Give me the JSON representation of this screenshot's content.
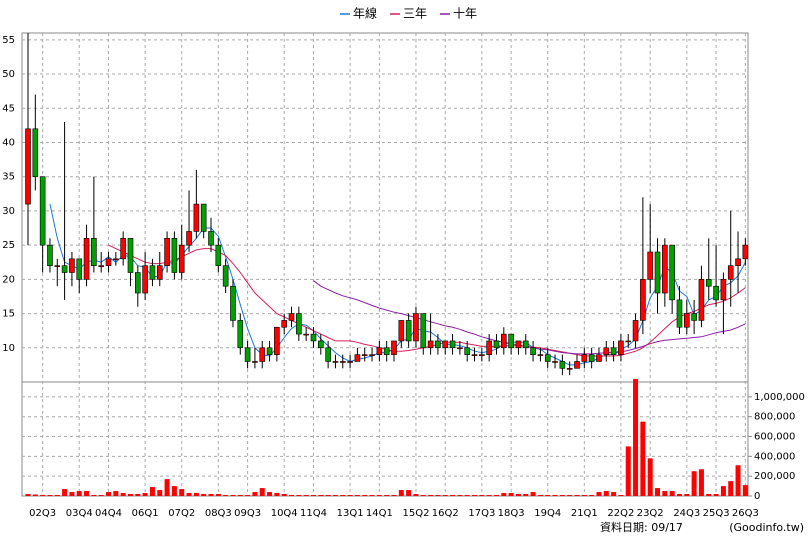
{
  "chart_data": {
    "type": "candlestick",
    "up_color": "#ff0000",
    "down_color": "#00a000",
    "volume_color": "#ff0000",
    "grid": true,
    "categories": [
      null,
      null,
      "02Q3",
      null,
      null,
      null,
      null,
      "03Q4",
      null,
      null,
      null,
      "04Q4",
      null,
      null,
      null,
      null,
      "06Q1",
      null,
      null,
      null,
      null,
      "07Q2",
      null,
      null,
      null,
      null,
      "08Q3",
      null,
      null,
      null,
      "09Q3",
      null,
      null,
      null,
      null,
      "10Q4",
      null,
      null,
      null,
      "11Q4",
      null,
      null,
      null,
      null,
      "13Q1",
      null,
      null,
      null,
      "14Q1",
      null,
      null,
      null,
      null,
      "15Q2",
      null,
      null,
      null,
      "16Q2",
      null,
      null,
      null,
      null,
      "17Q3",
      null,
      null,
      null,
      "18Q3",
      null,
      null,
      null,
      null,
      "19Q4",
      null,
      null,
      null,
      null,
      "21Q1",
      null,
      null,
      null,
      null,
      "22Q2",
      null,
      null,
      null,
      "23Q2",
      null,
      null,
      null,
      null,
      "24Q3",
      null,
      null,
      null,
      "25Q3",
      null,
      null,
      null,
      "26Q3"
    ],
    "open": [
      31,
      42,
      35,
      25,
      22,
      22,
      21,
      23,
      20,
      26,
      22,
      22,
      23,
      23,
      26,
      21,
      18,
      22,
      20,
      22,
      26,
      21,
      25,
      27,
      31,
      27,
      25,
      22,
      19,
      14,
      10,
      8,
      8,
      10,
      9,
      13,
      14,
      15,
      12,
      12,
      11,
      10,
      8,
      8,
      8,
      8,
      9,
      9,
      9,
      10,
      9,
      11,
      14,
      11,
      15,
      10,
      11,
      10,
      11,
      10,
      10,
      9,
      9,
      9,
      11,
      10,
      12,
      10,
      11,
      10,
      9,
      9,
      8,
      8,
      7,
      7,
      8,
      9,
      8,
      9,
      10,
      9,
      11,
      11,
      14,
      20,
      24,
      18,
      25,
      17,
      13,
      15,
      14,
      20,
      19,
      17,
      20,
      22,
      23
    ],
    "high": [
      56,
      47,
      35,
      26,
      23,
      43,
      24,
      23,
      28,
      35,
      24,
      24,
      24,
      27,
      26,
      22,
      24,
      23,
      24,
      27,
      27,
      28,
      33,
      36,
      31,
      29,
      26,
      23,
      20,
      15,
      11,
      10,
      11,
      11,
      13,
      15,
      16,
      16,
      13,
      13,
      12,
      11,
      9,
      9,
      9,
      10,
      10,
      10,
      11,
      11,
      11,
      14,
      15,
      16,
      15,
      15,
      12,
      11,
      12,
      11,
      11,
      10,
      10,
      12,
      12,
      13,
      12,
      11,
      12,
      11,
      10,
      10,
      9,
      9,
      8,
      9,
      10,
      10,
      10,
      11,
      11,
      12,
      12,
      15,
      32,
      31,
      26,
      26,
      25,
      19,
      17,
      17,
      22,
      26,
      25,
      21,
      30,
      27,
      26
    ],
    "low": [
      25,
      33,
      21,
      21,
      19,
      17,
      19,
      18,
      19,
      21,
      21,
      21,
      22,
      22,
      19,
      16,
      17,
      19,
      19,
      21,
      20,
      20,
      24,
      26,
      26,
      24,
      21,
      18,
      13,
      9,
      7,
      7,
      7,
      8,
      8,
      12,
      13,
      11,
      11,
      10,
      9,
      7,
      7,
      7,
      7,
      8,
      8,
      8,
      8,
      8,
      8,
      10,
      10,
      10,
      9,
      9,
      9,
      9,
      9,
      9,
      8,
      8,
      8,
      8,
      9,
      9,
      9,
      9,
      9,
      8,
      8,
      7,
      7,
      6,
      6,
      7,
      7,
      7,
      8,
      8,
      8,
      8,
      10,
      10,
      12,
      18,
      15,
      16,
      15,
      12,
      12,
      12,
      13,
      17,
      16,
      12,
      16,
      18,
      22
    ],
    "close": [
      42,
      35,
      25,
      22,
      22,
      21,
      23,
      20,
      26,
      22,
      22,
      23,
      23,
      26,
      21,
      18,
      22,
      20,
      22,
      26,
      21,
      25,
      27,
      31,
      27,
      25,
      22,
      19,
      14,
      10,
      8,
      8,
      10,
      9,
      13,
      14,
      15,
      12,
      12,
      11,
      10,
      8,
      8,
      8,
      8,
      9,
      9,
      9,
      10,
      9,
      11,
      14,
      11,
      15,
      10,
      11,
      10,
      11,
      10,
      10,
      9,
      9,
      9,
      11,
      10,
      12,
      10,
      11,
      10,
      9,
      9,
      8,
      8,
      7,
      7,
      8,
      9,
      8,
      9,
      10,
      9,
      11,
      11,
      14,
      20,
      24,
      18,
      25,
      17,
      13,
      15,
      14,
      20,
      19,
      17,
      20,
      22,
      23,
      25
    ],
    "series": [
      {
        "name": "年線",
        "color": "#1e78d8",
        "values": [
          null,
          null,
          null,
          31,
          26,
          22.5,
          22,
          21.5,
          22.5,
          22.8,
          22.5,
          23.3,
          22.5,
          23.5,
          23.3,
          22,
          21.8,
          20.3,
          20.5,
          22.5,
          22.3,
          23.5,
          24.8,
          26,
          27.5,
          27.5,
          26.3,
          23.3,
          20,
          16.3,
          12.8,
          10,
          9,
          8.8,
          10,
          11.5,
          12.8,
          13.5,
          13.3,
          12.5,
          11.3,
          10.3,
          9.3,
          8.5,
          8,
          8.3,
          8.5,
          8.8,
          9.3,
          9.3,
          9.8,
          11,
          11.3,
          12.8,
          12.5,
          12.3,
          11.5,
          10.5,
          10.5,
          10.3,
          10,
          9.5,
          9.3,
          9.5,
          9.8,
          10.5,
          10.8,
          10.8,
          10.8,
          10,
          9.8,
          9,
          8.5,
          8,
          7.5,
          7.5,
          7.8,
          8,
          8.5,
          9,
          9,
          9.8,
          10.3,
          11.3,
          14,
          17.3,
          19,
          21.8,
          21,
          18.3,
          17.5,
          14.8,
          15.5,
          17,
          17.5,
          19,
          19.5,
          20.5,
          22.5
        ]
      },
      {
        "name": "三年",
        "color": "#d81e5a",
        "values": [
          null,
          null,
          null,
          null,
          null,
          null,
          null,
          null,
          null,
          null,
          null,
          25,
          24.5,
          24,
          23.5,
          23,
          22.5,
          22.3,
          22.3,
          22.5,
          22.8,
          23.3,
          23.8,
          24.3,
          24.5,
          24.5,
          24,
          23.5,
          22.3,
          21,
          19.5,
          18,
          17,
          16,
          15,
          14.5,
          14,
          13.5,
          13,
          12.5,
          12,
          11.5,
          11,
          11,
          11,
          10.8,
          10.5,
          10.3,
          10,
          9.8,
          9.5,
          9.5,
          9.6,
          9.8,
          10,
          10.2,
          10.5,
          10.8,
          10.8,
          10.8,
          10.6,
          10.4,
          10.2,
          10.2,
          10.2,
          10.3,
          10.3,
          10.3,
          10.2,
          10.1,
          10,
          9.8,
          9.6,
          9.4,
          9.2,
          9,
          8.8,
          8.8,
          8.8,
          8.8,
          8.8,
          8.9,
          9.2,
          9.5,
          10,
          10.8,
          11.8,
          12.8,
          13.8,
          14.5,
          15,
          15.3,
          15.8,
          16.3,
          16.5,
          16.8,
          17.3,
          18,
          18.8
        ]
      },
      {
        "name": "十年",
        "color": "#8a1ea8",
        "values": [
          null,
          null,
          null,
          null,
          null,
          null,
          null,
          null,
          null,
          null,
          null,
          null,
          null,
          null,
          null,
          null,
          null,
          null,
          null,
          null,
          null,
          null,
          null,
          null,
          null,
          null,
          null,
          null,
          null,
          null,
          null,
          null,
          null,
          null,
          null,
          null,
          null,
          null,
          null,
          19.8,
          19,
          18.5,
          18,
          17.6,
          17.3,
          17,
          16.6,
          16.2,
          15.8,
          15.5,
          15.2,
          15,
          14.7,
          14.4,
          14.1,
          13.8,
          13.5,
          13.2,
          13,
          12.7,
          12.3,
          12,
          11.6,
          11.3,
          11,
          10.8,
          10.6,
          10.4,
          10.2,
          10,
          9.8,
          9.7,
          9.5,
          9.3,
          9.2,
          9.1,
          9.1,
          9.1,
          9.2,
          9.3,
          9.3,
          9.4,
          9.6,
          9.9,
          10.2,
          10.6,
          10.9,
          11.1,
          11.2,
          11.3,
          11.4,
          11.5,
          11.6,
          11.9,
          12.2,
          12.4,
          12.6,
          13,
          13.5
        ]
      }
    ],
    "ylim": [
      5,
      56
    ],
    "yticks": [
      10,
      15,
      20,
      25,
      30,
      35,
      40,
      45,
      50,
      55
    ],
    "volume": [
      20000,
      15000,
      10000,
      10000,
      10000,
      70000,
      40000,
      50000,
      50000,
      10000,
      10000,
      40000,
      50000,
      30000,
      20000,
      20000,
      30000,
      90000,
      60000,
      170000,
      100000,
      70000,
      30000,
      30000,
      20000,
      20000,
      20000,
      10000,
      10000,
      10000,
      10000,
      40000,
      80000,
      40000,
      30000,
      20000,
      10000,
      10000,
      10000,
      10000,
      10000,
      10000,
      10000,
      10000,
      10000,
      10000,
      10000,
      10000,
      10000,
      10000,
      10000,
      60000,
      60000,
      20000,
      10000,
      10000,
      10000,
      10000,
      10000,
      10000,
      10000,
      10000,
      10000,
      10000,
      10000,
      30000,
      30000,
      20000,
      20000,
      40000,
      10000,
      10000,
      10000,
      10000,
      10000,
      10000,
      10000,
      10000,
      40000,
      50000,
      40000,
      10000,
      500000,
      1180000,
      750000,
      380000,
      80000,
      50000,
      50000,
      20000,
      20000,
      250000,
      270000,
      20000,
      20000,
      100000,
      150000,
      310000,
      110000
    ],
    "y2lim": [
      0,
      1150000
    ],
    "y2ticks": [
      0,
      {
        "value": 200000,
        "label": "200,000"
      },
      {
        "value": 400000,
        "label": "400,000"
      },
      {
        "value": 600000,
        "label": "600,000"
      },
      {
        "value": 800000,
        "label": "800,000"
      },
      {
        "value": 1000000,
        "label": "1,000,000"
      }
    ],
    "footer": "資料日期: 09/17",
    "source": "(Goodinfo.tw)"
  }
}
